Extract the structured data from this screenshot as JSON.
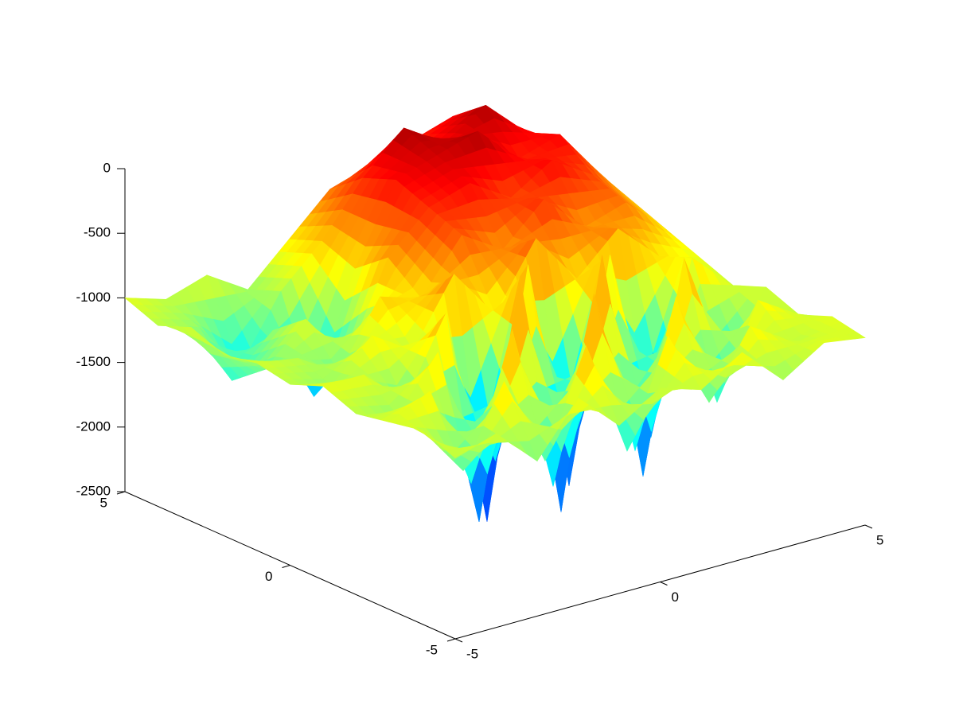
{
  "chart_data": {
    "type": "surface",
    "colormap": "jet",
    "x": [
      -5,
      -4,
      -3,
      -2,
      -1,
      0,
      1,
      2,
      3,
      4,
      5
    ],
    "y": [
      -5,
      -4,
      -3,
      -2,
      -1,
      0,
      1,
      2,
      3,
      4,
      5
    ],
    "z": [
      [
        -1100,
        -1000,
        -1300,
        -900,
        -1200,
        -1000,
        -1100,
        -900,
        -1200,
        -1000,
        -1050
      ],
      [
        -1000,
        -1400,
        -800,
        -1500,
        -700,
        -1600,
        -800,
        -1400,
        -900,
        -1100,
        -1000
      ],
      [
        -1050,
        -900,
        -1700,
        -600,
        -1900,
        -500,
        -1800,
        -700,
        -1600,
        -900,
        -1100
      ],
      [
        -1100,
        -1200,
        -800,
        -2200,
        -400,
        -2300,
        -400,
        -2200,
        -600,
        -1500,
        -1000
      ],
      [
        -1000,
        -1000,
        -1300,
        -700,
        -2400,
        -500,
        -2300,
        -600,
        -2100,
        -800,
        -1100
      ],
      [
        -1100,
        -1200,
        -900,
        -1100,
        -600,
        -1000,
        -500,
        -900,
        -600,
        -900,
        -1000
      ],
      [
        -1050,
        -1100,
        -1300,
        -800,
        -900,
        -500,
        -700,
        -400,
        -700,
        -600,
        -900
      ],
      [
        -1100,
        -1300,
        -1000,
        -1400,
        -700,
        -400,
        -300,
        -500,
        -300,
        -500,
        -800
      ],
      [
        -1000,
        -1500,
        -1200,
        -1800,
        -900,
        -300,
        -200,
        -100,
        -400,
        -300,
        -700
      ],
      [
        -1100,
        -1200,
        -1600,
        -1100,
        -800,
        -400,
        -100,
        -300,
        -100,
        -400,
        -600
      ],
      [
        -1000,
        -1100,
        -1000,
        -1200,
        -900,
        -600,
        -500,
        -400,
        -300,
        -500,
        -700
      ]
    ],
    "xlim": [
      -5,
      5
    ],
    "ylim": [
      -5,
      5
    ],
    "zlim": [
      -2500,
      0
    ],
    "xticks": [
      -5,
      0,
      5
    ],
    "yticks": [
      -5,
      0,
      5
    ],
    "zticks": [
      -2500,
      -2000,
      -1500,
      -1000,
      -500,
      0
    ]
  }
}
